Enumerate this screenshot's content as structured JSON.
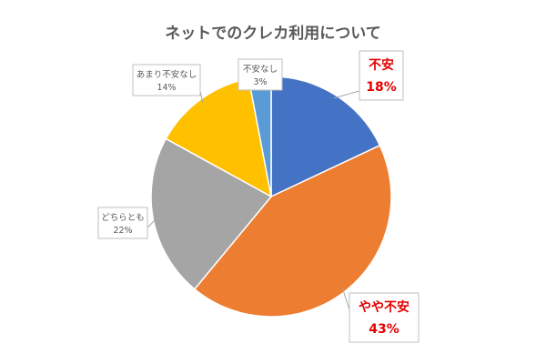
{
  "chart_data": {
    "type": "pie",
    "title": "ネットでのクレカ利用について",
    "slices": [
      {
        "label": "不安",
        "value": 18,
        "value_label": "18%",
        "color": "#4472c4",
        "emphasis": true
      },
      {
        "label": "やや不安",
        "value": 43,
        "value_label": "43%",
        "color": "#ed7d31",
        "emphasis": true
      },
      {
        "label": "どちらとも",
        "value": 22,
        "value_label": "22%",
        "color": "#a5a5a5",
        "emphasis": false
      },
      {
        "label": "あまり不安なし",
        "value": 14,
        "value_label": "14%",
        "color": "#ffc000",
        "emphasis": false
      },
      {
        "label": "不安なし",
        "value": 3,
        "value_label": "3%",
        "color": "#5b9bd5",
        "emphasis": false
      }
    ],
    "start": "12 o'clock",
    "direction": "clockwise",
    "legend": "none",
    "emphasis_text_color": "#e60000"
  }
}
